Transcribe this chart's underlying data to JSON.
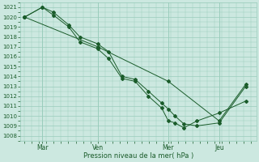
{
  "xlabel": "Pression niveau de la mer( hPa )",
  "ylim": [
    1007.5,
    1021.5
  ],
  "yticks": [
    1008,
    1009,
    1010,
    1011,
    1012,
    1013,
    1014,
    1015,
    1016,
    1017,
    1018,
    1019,
    1020,
    1021
  ],
  "bg_color": "#cce8e0",
  "grid_color": "#99ccbb",
  "line_color": "#1a5c2a",
  "xtick_labels": [
    "Mar",
    "Ven",
    "Mer",
    "Jeu"
  ],
  "xtick_positions": [
    0.08,
    0.33,
    0.65,
    0.88
  ],
  "series1_x": [
    0.0,
    0.08,
    0.13,
    0.2,
    0.25,
    0.33,
    0.38,
    0.44,
    0.5,
    0.56,
    0.62,
    0.65,
    0.68,
    0.72,
    0.78,
    0.88,
    1.0
  ],
  "series1_y": [
    1020.0,
    1021.0,
    1020.5,
    1019.2,
    1018.0,
    1017.3,
    1016.5,
    1014.0,
    1013.7,
    1012.5,
    1011.3,
    1010.7,
    1010.0,
    1009.2,
    1009.0,
    1009.3,
    1013.0
  ],
  "series2_x": [
    0.0,
    0.08,
    0.13,
    0.2,
    0.25,
    0.33,
    0.38,
    0.44,
    0.5,
    0.56,
    0.62,
    0.65,
    0.68,
    0.72,
    0.78,
    0.88,
    1.0
  ],
  "series2_y": [
    1020.0,
    1021.0,
    1020.2,
    1019.0,
    1017.5,
    1016.8,
    1015.8,
    1013.8,
    1013.5,
    1012.0,
    1010.8,
    1009.5,
    1009.3,
    1008.8,
    1009.5,
    1010.3,
    1011.5
  ],
  "series3_x": [
    0.0,
    0.33,
    0.65,
    0.88,
    1.0
  ],
  "series3_y": [
    1020.0,
    1017.0,
    1013.5,
    1009.5,
    1013.2
  ],
  "xlim": [
    -0.02,
    1.05
  ]
}
